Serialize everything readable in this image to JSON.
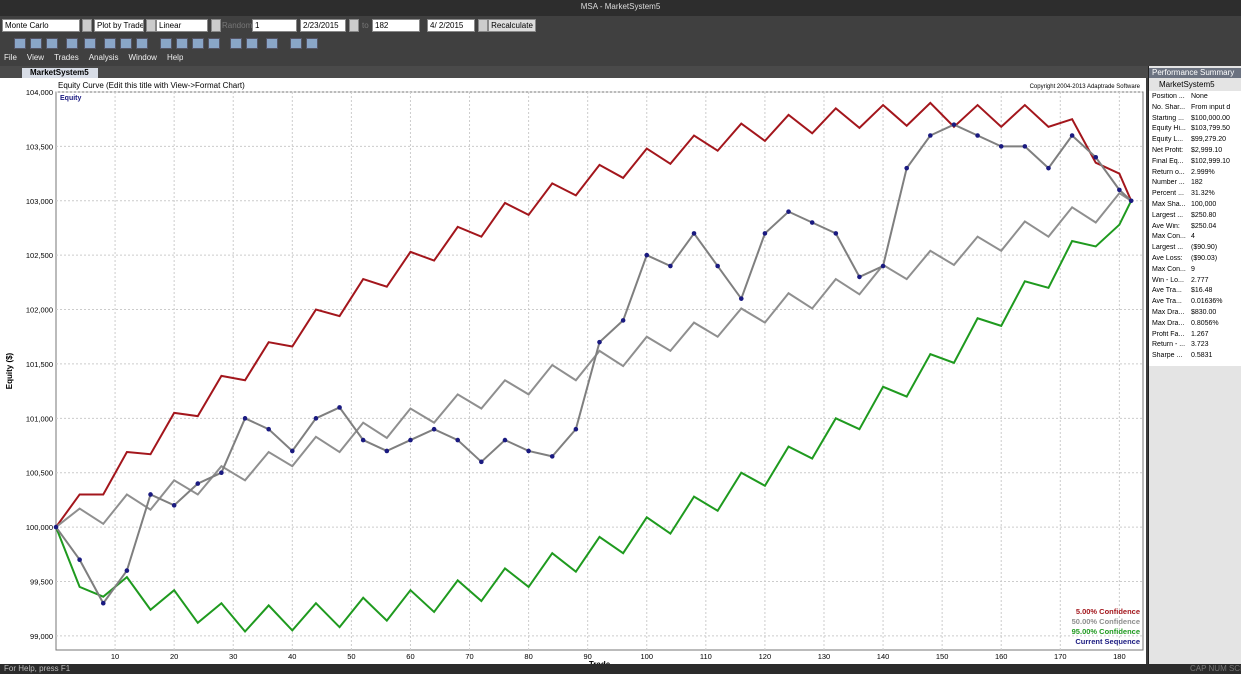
{
  "window": {
    "title": "MSA - MarketSystem5"
  },
  "toolbar": {
    "mode": "Monte Carlo",
    "plot_by": "Plot by Trade",
    "scale": "Linear",
    "random_label": "Random:",
    "seed": "1",
    "start_date": "2/23/2015",
    "to_label": "to",
    "end_trade": "182",
    "end_date": "4/ 2/2015",
    "button": "Recalculate"
  },
  "menu": [
    "File",
    "View",
    "Trades",
    "Analysis",
    "Window",
    "Help"
  ],
  "tab": "MarketSystem5",
  "chart_data": {
    "type": "line",
    "title": "Equity Curve (Edit this title with View->Format Chart)",
    "copyright": "Copyright 2004-2013 Adaptrade Software",
    "series_label": "Equity",
    "x_label": "Trade",
    "y_label": "Equity ($)",
    "grid": true,
    "legend": "lower right",
    "x": [
      0,
      4,
      8,
      12,
      16,
      20,
      24,
      28,
      32,
      36,
      40,
      44,
      48,
      52,
      56,
      60,
      64,
      68,
      72,
      76,
      80,
      84,
      88,
      92,
      96,
      100,
      104,
      108,
      112,
      116,
      120,
      124,
      128,
      132,
      136,
      140,
      144,
      148,
      152,
      156,
      160,
      164,
      168,
      172,
      176,
      180,
      182
    ],
    "xlim": [
      0,
      184
    ],
    "xticks": [
      10,
      20,
      30,
      40,
      50,
      60,
      70,
      80,
      90,
      100,
      110,
      120,
      130,
      140,
      150,
      160,
      170,
      180
    ],
    "ylim": [
      98870,
      104000
    ],
    "yticks": [
      {
        "value": 99000,
        "label": "99,000"
      },
      {
        "value": 99500,
        "label": "99,500"
      },
      {
        "value": 100000,
        "label": "100,000"
      },
      {
        "value": 100500,
        "label": "100,500"
      },
      {
        "value": 101000,
        "label": "101,000"
      },
      {
        "value": 101500,
        "label": "101,500"
      },
      {
        "value": 102000,
        "label": "102,000"
      },
      {
        "value": 102500,
        "label": "102,500"
      },
      {
        "value": 103000,
        "label": "103,000"
      },
      {
        "value": 103500,
        "label": "103,500"
      },
      {
        "value": 104000,
        "label": "104,000"
      }
    ],
    "series": [
      {
        "name": "5.00% Confidence",
        "color": "#a3161c",
        "values": [
          100000,
          100300,
          100300,
          100690,
          100670,
          101050,
          101020,
          101390,
          101350,
          101700,
          101660,
          102000,
          101940,
          102280,
          102210,
          102530,
          102450,
          102760,
          102670,
          102980,
          102870,
          103160,
          103050,
          103330,
          103210,
          103480,
          103340,
          103600,
          103460,
          103710,
          103550,
          103790,
          103620,
          103850,
          103670,
          103880,
          103690,
          103900,
          103680,
          103880,
          103680,
          103880,
          103680,
          103750,
          103350,
          103250,
          103000
        ]
      },
      {
        "name": "50.00% Confidence",
        "color": "#8f8f8f",
        "values": [
          100000,
          100170,
          100030,
          100300,
          100160,
          100430,
          100300,
          100560,
          100430,
          100690,
          100560,
          100830,
          100690,
          100960,
          100820,
          101090,
          100960,
          101220,
          101090,
          101350,
          101220,
          101490,
          101350,
          101620,
          101480,
          101750,
          101620,
          101880,
          101750,
          102010,
          101880,
          102150,
          102010,
          102280,
          102140,
          102410,
          102280,
          102540,
          102410,
          102670,
          102540,
          102810,
          102670,
          102940,
          102800,
          103070,
          103000
        ]
      },
      {
        "name": "95.00% Confidence",
        "color": "#1f9a1f",
        "values": [
          100000,
          99450,
          99360,
          99540,
          99240,
          99420,
          99120,
          99300,
          99040,
          99280,
          99050,
          99300,
          99080,
          99350,
          99140,
          99420,
          99220,
          99510,
          99320,
          99620,
          99450,
          99760,
          99590,
          99910,
          99760,
          100090,
          99940,
          100280,
          100150,
          100500,
          100380,
          100740,
          100630,
          101000,
          100900,
          101290,
          101200,
          101590,
          101510,
          101920,
          101850,
          102260,
          102200,
          102630,
          102580,
          102780,
          103000
        ]
      },
      {
        "name": "Current Sequence",
        "color": "#1a1a80",
        "line_color": "#7f7f7f",
        "markers": true,
        "values": [
          100000,
          99700,
          99300,
          99600,
          100300,
          100200,
          100400,
          100500,
          101000,
          100900,
          100700,
          101000,
          101100,
          100800,
          100700,
          100800,
          100900,
          100800,
          100600,
          100800,
          100700,
          100650,
          100900,
          101700,
          101900,
          102500,
          102400,
          102700,
          102400,
          102100,
          102700,
          102900,
          102800,
          102700,
          102300,
          102400,
          103300,
          103600,
          103700,
          103600,
          103500,
          103500,
          103300,
          103600,
          103400,
          103100,
          103000
        ]
      }
    ]
  },
  "performance_summary": {
    "title": "Performance Summary",
    "root": "MarketSystem5",
    "rows": [
      [
        "Position ...",
        "None"
      ],
      [
        "No. Shar...",
        "From input d"
      ],
      [
        "Starting ...",
        "$100,000.00"
      ],
      [
        "Equity Hi...",
        "$103,799.50"
      ],
      [
        "Equity L...",
        "$99,279.20"
      ],
      [
        "Net Profit:",
        "$2,999.10"
      ],
      [
        "Final Eq...",
        "$102,999.10"
      ],
      [
        "Return o...",
        "2.999%"
      ],
      [
        "Number ...",
        "182"
      ],
      [
        "Percent ...",
        "31.32%"
      ],
      [
        "Max Sha...",
        "100,000"
      ],
      [
        "Largest ...",
        "$250.80"
      ],
      [
        "Ave Win:",
        "$250.04"
      ],
      [
        "Max Con...",
        "4"
      ],
      [
        "Largest ...",
        "($90.90)"
      ],
      [
        "Ave Loss:",
        "($90.03)"
      ],
      [
        "Max Con...",
        "9"
      ],
      [
        "Win - Lo...",
        "2.777"
      ],
      [
        "Ave Tra...",
        "$16.48"
      ],
      [
        "Ave Tra...",
        "0.01636%"
      ],
      [
        "Max Dra...",
        "$830.00"
      ],
      [
        "Max Dra...",
        "0.8056%"
      ],
      [
        "Profit Fa...",
        "1.267"
      ],
      [
        "Return - ...",
        "3.723"
      ],
      [
        "Sharpe ...",
        "0.5831"
      ]
    ]
  },
  "status": {
    "left": "For Help, press F1",
    "right": "CAP NUM SCRL"
  }
}
